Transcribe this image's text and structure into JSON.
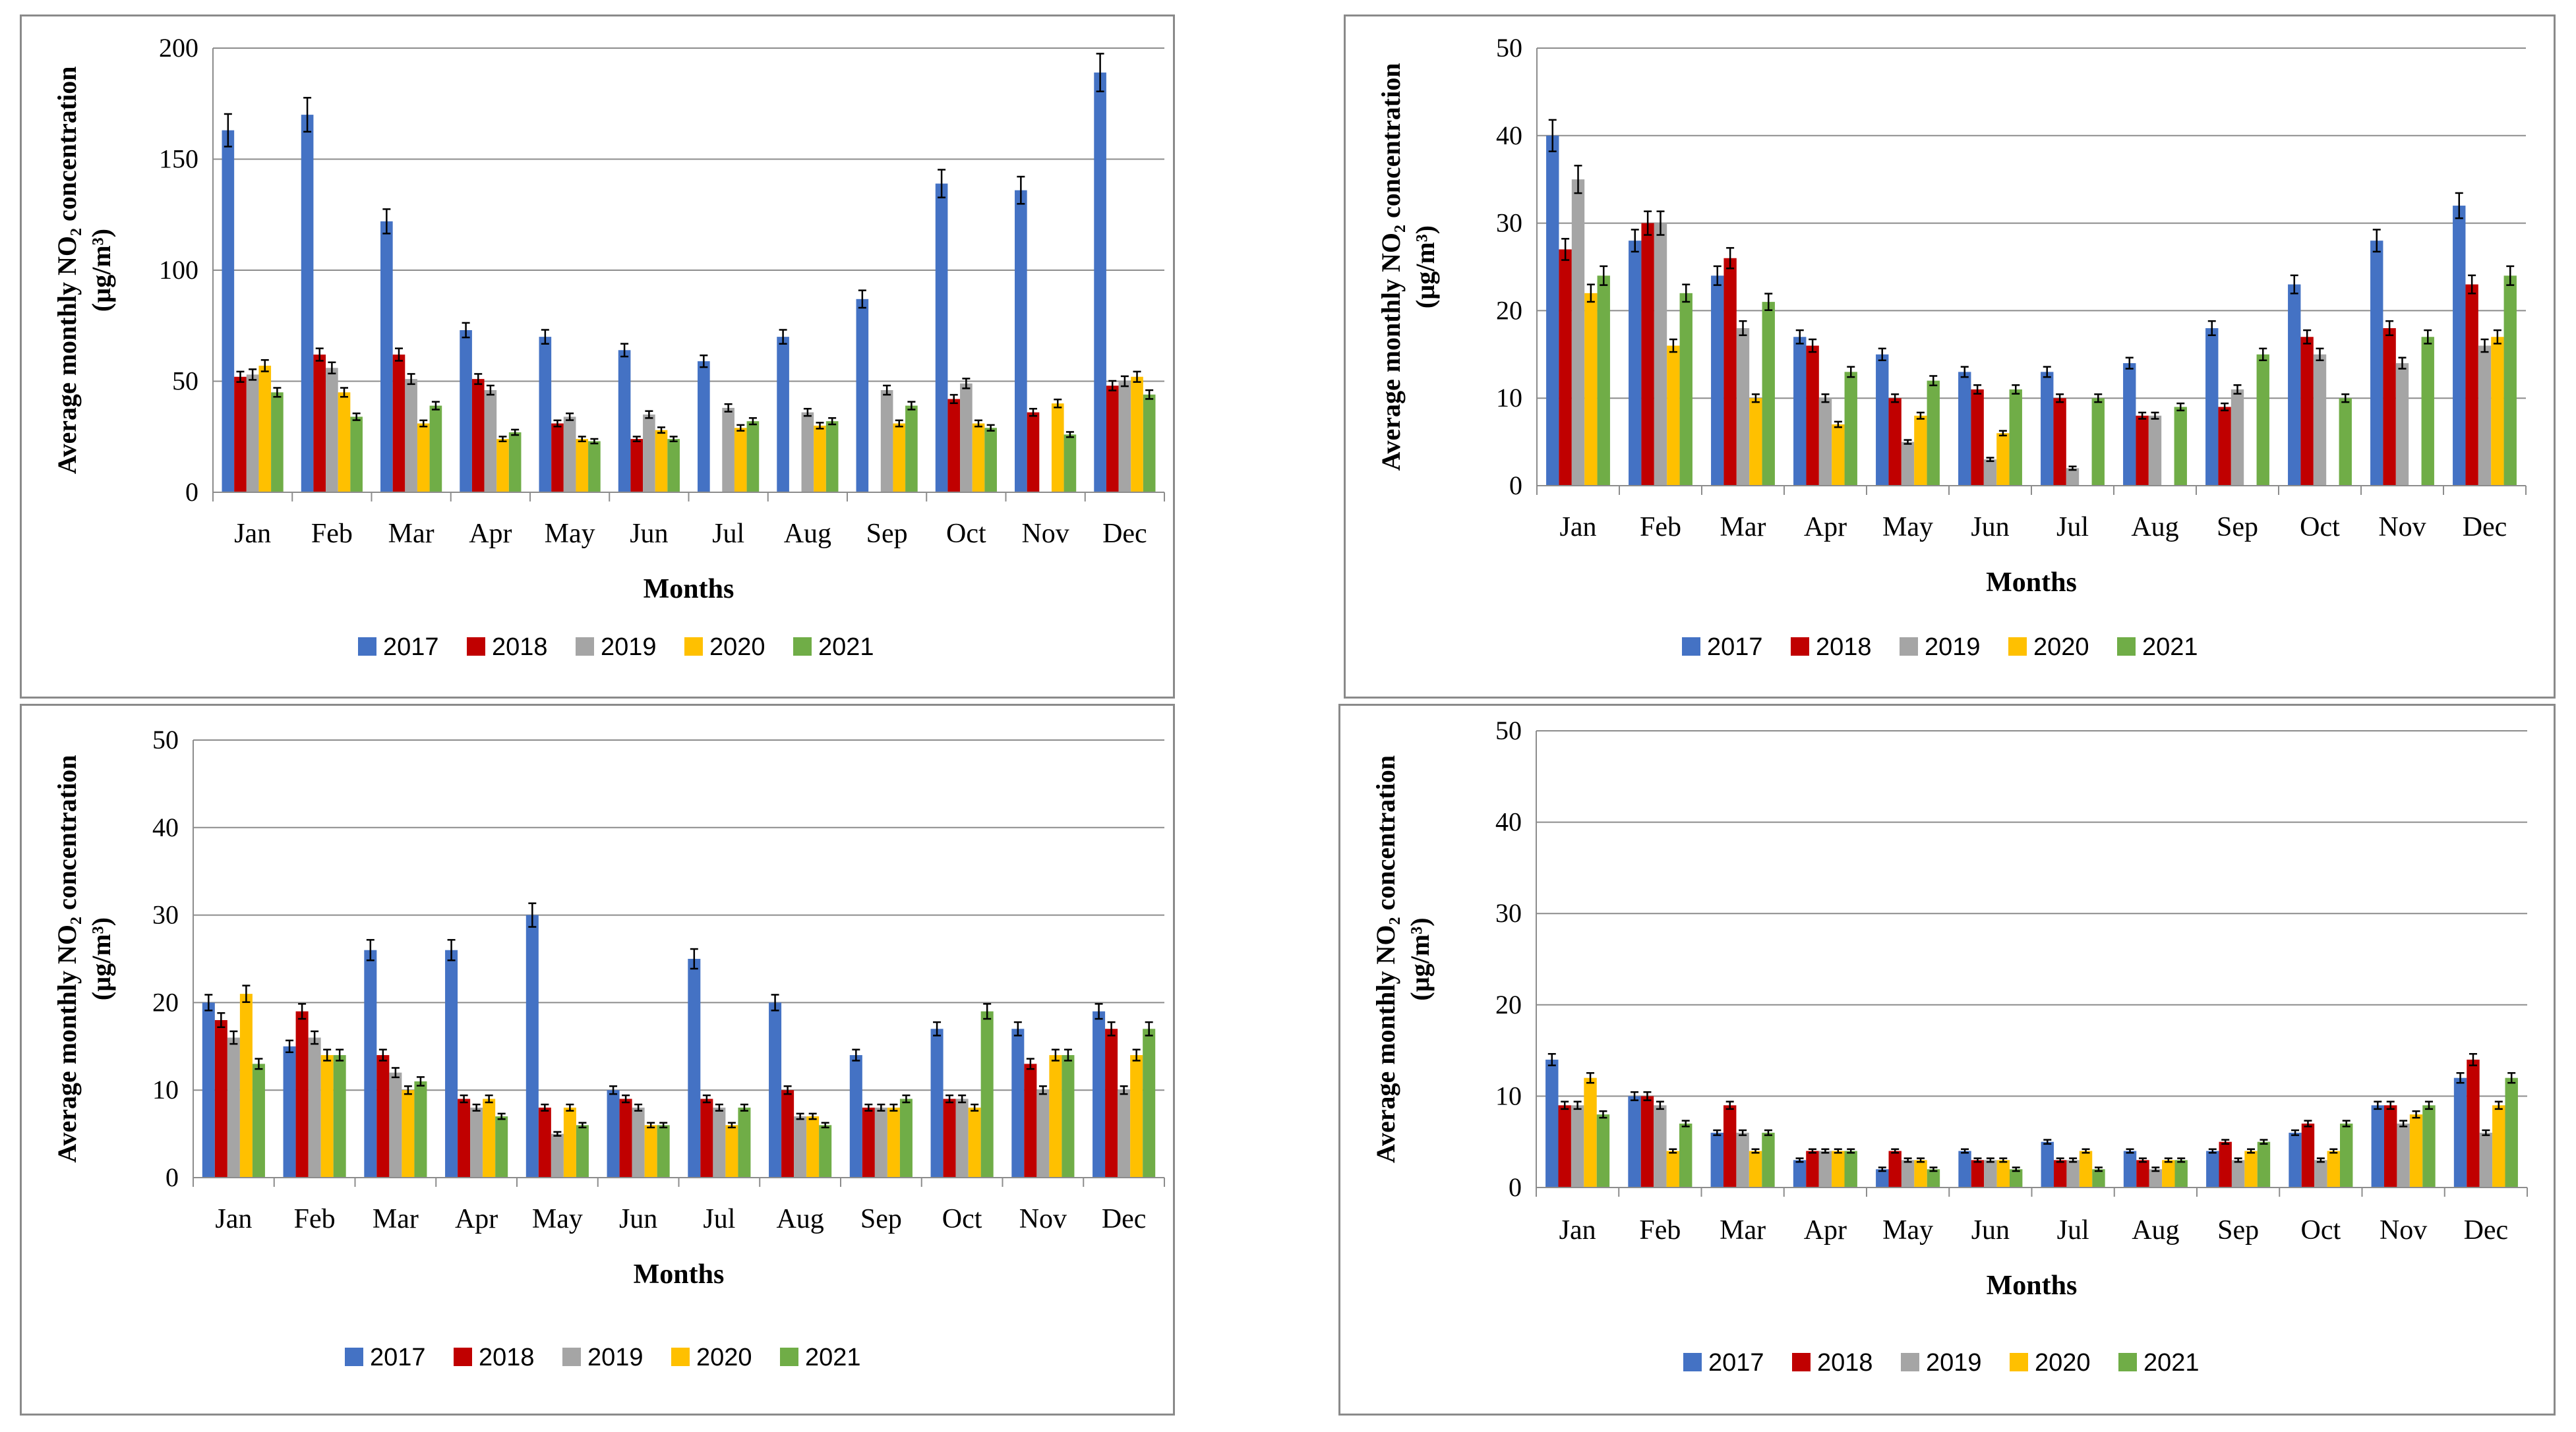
{
  "y_title": "Average monthly NO₂ concentration",
  "y_unit": "(µg/m³)",
  "colors": {
    "2017": "#4472C4",
    "2018": "#C00000",
    "2019": "#A5A5A5",
    "2020": "#FFC000",
    "2021": "#70AD47"
  },
  "chart_data": [
    {
      "type": "bar",
      "categories": [
        "Jan",
        "Feb",
        "Mar",
        "Apr",
        "May",
        "Jun",
        "Jul",
        "Aug",
        "Sep",
        "Oct",
        "Nov",
        "Dec"
      ],
      "xlabel": "Months",
      "ylabel": "Average monthly NO₂ concentration (µg/m³)",
      "ylim": [
        0,
        200
      ],
      "yticks": [
        "0",
        "50",
        "100",
        "150",
        "200"
      ],
      "legend": [
        "2017",
        "2018",
        "2019",
        "2020",
        "2021"
      ],
      "series": [
        {
          "name": "2017",
          "values": [
            163,
            170,
            122,
            73,
            70,
            64,
            59,
            70,
            87,
            139,
            136,
            189
          ]
        },
        {
          "name": "2018",
          "values": [
            52,
            62,
            62,
            51,
            31,
            24,
            0,
            0,
            0,
            42,
            36,
            48
          ]
        },
        {
          "name": "2019",
          "values": [
            53,
            56,
            51,
            46,
            34,
            35,
            38,
            36,
            46,
            49,
            0,
            50
          ]
        },
        {
          "name": "2020",
          "values": [
            57,
            45,
            31,
            24,
            24,
            28,
            29,
            30,
            31,
            31,
            40,
            52
          ]
        },
        {
          "name": "2021",
          "values": [
            45,
            34,
            39,
            27,
            23,
            24,
            32,
            32,
            39,
            29,
            26,
            44
          ]
        }
      ]
    },
    {
      "type": "bar",
      "categories": [
        "Jan",
        "Feb",
        "Mar",
        "Apr",
        "May",
        "Jun",
        "Jul",
        "Aug",
        "Sep",
        "Oct",
        "Nov",
        "Dec"
      ],
      "xlabel": "Months",
      "ylabel": "Average monthly NO₂ concentration (µg/m³)",
      "ylim": [
        0,
        50
      ],
      "yticks": [
        "0",
        "10",
        "20",
        "30",
        "40",
        "50"
      ],
      "legend": [
        "2017",
        "2018",
        "2019",
        "2020",
        "2021"
      ],
      "series": [
        {
          "name": "2017",
          "values": [
            40,
            28,
            24,
            17,
            15,
            13,
            13,
            14,
            18,
            23,
            28,
            32
          ]
        },
        {
          "name": "2018",
          "values": [
            27,
            30,
            26,
            16,
            10,
            11,
            10,
            8,
            9,
            17,
            18,
            23
          ]
        },
        {
          "name": "2019",
          "values": [
            35,
            30,
            18,
            10,
            5,
            3,
            2,
            8,
            11,
            15,
            14,
            16
          ]
        },
        {
          "name": "2020",
          "values": [
            22,
            16,
            10,
            7,
            8,
            6,
            0,
            0,
            0,
            0,
            0,
            17
          ]
        },
        {
          "name": "2021",
          "values": [
            24,
            22,
            21,
            13,
            12,
            11,
            10,
            9,
            15,
            10,
            17,
            24
          ]
        }
      ]
    },
    {
      "type": "bar",
      "categories": [
        "Jan",
        "Feb",
        "Mar",
        "Apr",
        "May",
        "Jun",
        "Jul",
        "Aug",
        "Sep",
        "Oct",
        "Nov",
        "Dec"
      ],
      "xlabel": "Months",
      "ylabel": "Average monthly NO₂ concentration (µg/m³)",
      "ylim": [
        0,
        50
      ],
      "yticks": [
        "0",
        "10",
        "20",
        "30",
        "40",
        "50"
      ],
      "legend": [
        "2017",
        "2018",
        "2019",
        "2020",
        "2021"
      ],
      "series": [
        {
          "name": "2017",
          "values": [
            20,
            15,
            26,
            26,
            30,
            10,
            25,
            20,
            14,
            17,
            17,
            19
          ]
        },
        {
          "name": "2018",
          "values": [
            18,
            19,
            14,
            9,
            8,
            9,
            9,
            10,
            8,
            9,
            13,
            17
          ]
        },
        {
          "name": "2019",
          "values": [
            16,
            16,
            12,
            8,
            5,
            8,
            8,
            7,
            8,
            9,
            10,
            10
          ]
        },
        {
          "name": "2020",
          "values": [
            21,
            14,
            10,
            9,
            8,
            6,
            6,
            7,
            8,
            8,
            14,
            14
          ]
        },
        {
          "name": "2021",
          "values": [
            13,
            14,
            11,
            7,
            6,
            6,
            8,
            6,
            9,
            19,
            14,
            17
          ]
        }
      ]
    },
    {
      "type": "bar",
      "categories": [
        "Jan",
        "Feb",
        "Mar",
        "Apr",
        "May",
        "Jun",
        "Jul",
        "Aug",
        "Sep",
        "Oct",
        "Nov",
        "Dec"
      ],
      "xlabel": "Months",
      "ylabel": "Average monthly NO₂ concentration (µg/m³)",
      "ylim": [
        0,
        50
      ],
      "yticks": [
        "0",
        "10",
        "20",
        "30",
        "40",
        "50"
      ],
      "legend": [
        "2017",
        "2018",
        "2019",
        "2020",
        "2021"
      ],
      "series": [
        {
          "name": "2017",
          "values": [
            14,
            10,
            6,
            3,
            2,
            4,
            5,
            4,
            4,
            6,
            9,
            12
          ]
        },
        {
          "name": "2018",
          "values": [
            9,
            10,
            9,
            4,
            4,
            3,
            3,
            3,
            5,
            7,
            9,
            14
          ]
        },
        {
          "name": "2019",
          "values": [
            9,
            9,
            6,
            4,
            3,
            3,
            3,
            2,
            3,
            3,
            7,
            6
          ]
        },
        {
          "name": "2020",
          "values": [
            12,
            4,
            4,
            4,
            3,
            3,
            4,
            3,
            4,
            4,
            8,
            9
          ]
        },
        {
          "name": "2021",
          "values": [
            8,
            7,
            6,
            4,
            2,
            2,
            2,
            3,
            5,
            7,
            9,
            12
          ]
        }
      ]
    }
  ]
}
